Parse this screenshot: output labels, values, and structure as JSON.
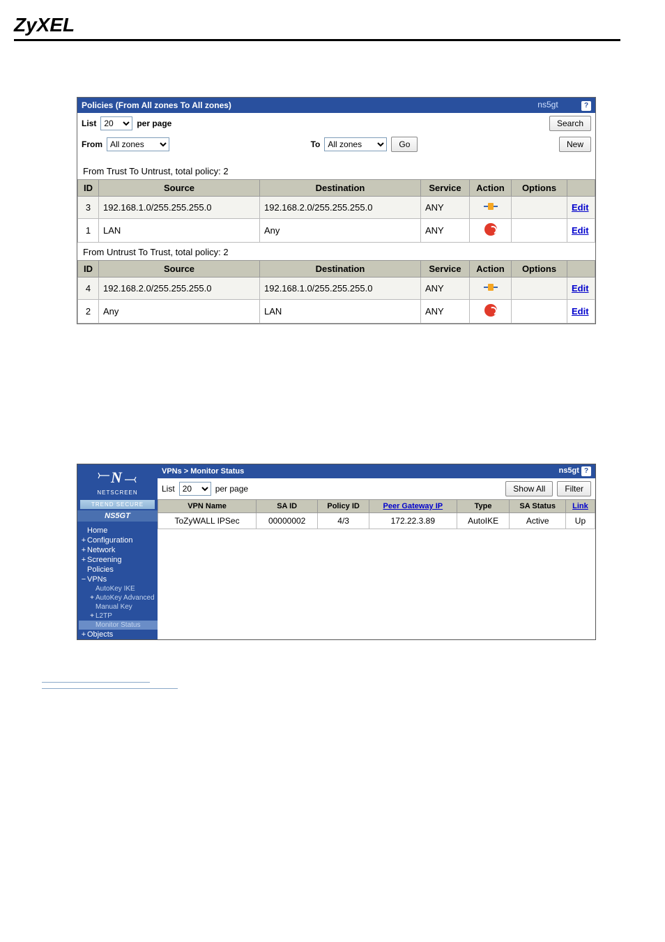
{
  "brand_logo": "ZyXEL",
  "policies": {
    "header_title": "Policies (From All zones To All zones)",
    "hostname": "ns5gt",
    "list_label": "List",
    "per_page_value": "20",
    "per_page_label": "per page",
    "search_label": "Search",
    "from_label": "From",
    "from_value": "All zones",
    "to_label": "To",
    "to_value": "All zones",
    "go_label": "Go",
    "new_label": "New",
    "sections": [
      {
        "caption": "From Trust To Untrust, total policy: 2",
        "rows": [
          {
            "id": "3",
            "source": "192.168.1.0/255.255.255.0",
            "dest": "192.168.2.0/255.255.255.0",
            "service": "ANY",
            "action": "permit",
            "edit": "Edit",
            "alt": true
          },
          {
            "id": "1",
            "source": "LAN",
            "dest": "Any",
            "service": "ANY",
            "action": "deny",
            "edit": "Edit",
            "alt": false
          }
        ]
      },
      {
        "caption": "From Untrust To Trust, total policy: 2",
        "rows": [
          {
            "id": "4",
            "source": "192.168.2.0/255.255.255.0",
            "dest": "192.168.1.0/255.255.255.0",
            "service": "ANY",
            "action": "permit",
            "edit": "Edit",
            "alt": true
          },
          {
            "id": "2",
            "source": "Any",
            "dest": "LAN",
            "service": "ANY",
            "action": "deny",
            "edit": "Edit",
            "alt": false
          }
        ]
      }
    ],
    "columns": {
      "id": "ID",
      "source": "Source",
      "destination": "Destination",
      "service": "Service",
      "action": "Action",
      "options": "Options"
    }
  },
  "vpn": {
    "breadcrumb": "VPNs > Monitor Status",
    "hostname": "ns5gt",
    "list_label": "List",
    "per_page_value": "20",
    "per_page_label": "per page",
    "showall_label": "Show All",
    "filter_label": "Filter",
    "sidebar": {
      "brand": "N",
      "brand_prefix_svg": true,
      "brand_sub": "NETSCREEN",
      "trend": "TREND  SECURE",
      "device": "NS5GT",
      "items": [
        {
          "label": "Home",
          "type": "top",
          "exp": ""
        },
        {
          "label": "Configuration",
          "type": "top",
          "exp": "+"
        },
        {
          "label": "Network",
          "type": "top",
          "exp": "+"
        },
        {
          "label": "Screening",
          "type": "top",
          "exp": "+"
        },
        {
          "label": "Policies",
          "type": "top",
          "exp": ""
        },
        {
          "label": "VPNs",
          "type": "top",
          "exp": "−"
        },
        {
          "label": "AutoKey IKE",
          "type": "sub",
          "exp": ""
        },
        {
          "label": "AutoKey Advanced",
          "type": "sub",
          "exp": "+"
        },
        {
          "label": "Manual Key",
          "type": "sub",
          "exp": ""
        },
        {
          "label": "L2TP",
          "type": "sub",
          "exp": "+"
        },
        {
          "label": "Monitor Status",
          "type": "sub",
          "exp": "",
          "active": true
        },
        {
          "label": "Objects",
          "type": "top",
          "exp": "+"
        }
      ]
    },
    "columns": {
      "vpn_name": "VPN Name",
      "sa_id": "SA ID",
      "policy_id": "Policy ID",
      "peer": "Peer Gateway IP",
      "type": "Type",
      "sa_status": "SA Status",
      "link": "Link"
    },
    "rows": [
      {
        "vpn_name": "ToZyWALL IPSec",
        "sa_id": "00000002",
        "policy_id": "4/3",
        "peer": "172.22.3.89",
        "type": "AutoIKE",
        "sa_status": "Active",
        "link": "Up"
      }
    ]
  }
}
